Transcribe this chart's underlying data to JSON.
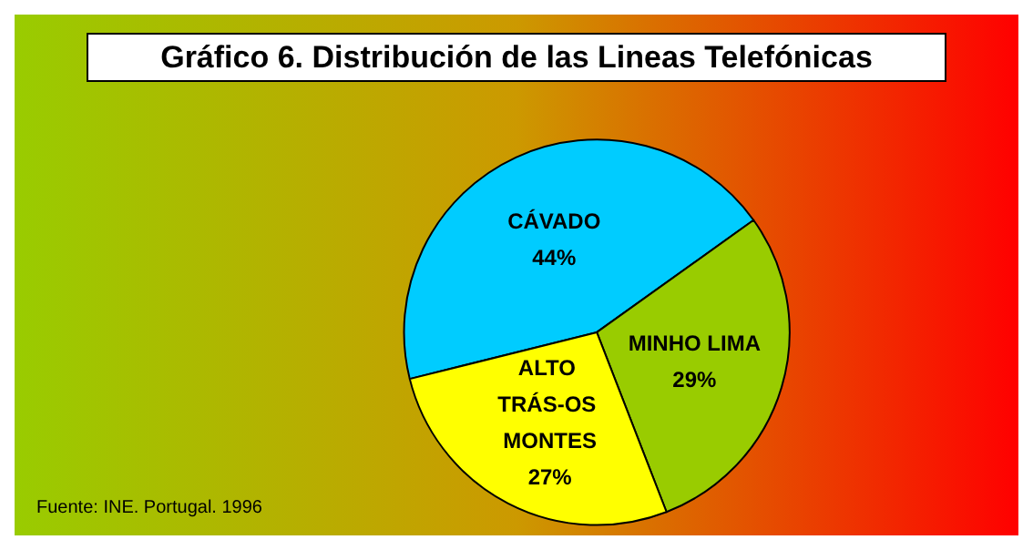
{
  "chart_data": {
    "type": "pie",
    "title": "Gráfico 6. Distribución de las Lineas Telefónicas",
    "categories": [
      "CÁVADO",
      "MINHO LIMA",
      "ALTO TRÁS-OS MONTES"
    ],
    "values": [
      44,
      29,
      27
    ],
    "value_labels": [
      "44%",
      "29%",
      "27%"
    ],
    "colors": [
      "#00ccff",
      "#99cc00",
      "#ffff00"
    ],
    "annotations": [
      "Fuente: INE. Portugal. 1996"
    ],
    "legend": false
  }
}
